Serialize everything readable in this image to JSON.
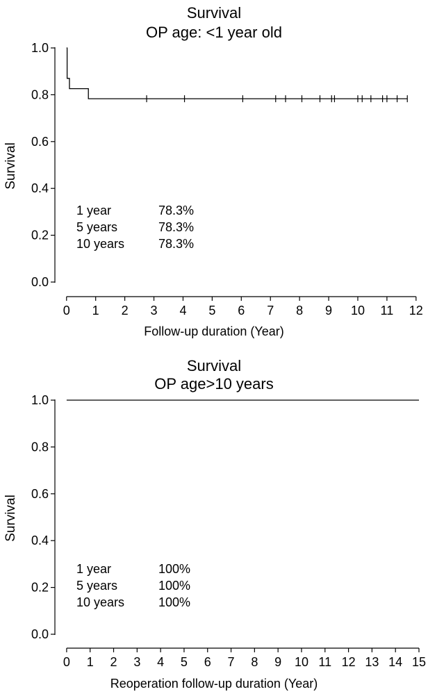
{
  "chart_data": [
    {
      "type": "line",
      "subtype": "kaplan-meier",
      "title": "Survival",
      "subtitle": "OP age: <1 year old",
      "xlabel": "Follow-up duration (Year)",
      "ylabel": "Survival",
      "xlim": [
        -0.4,
        12.1
      ],
      "ylim": [
        0,
        1
      ],
      "xticks": [
        "0",
        "1",
        "2",
        "3",
        "4",
        "5",
        "6",
        "7",
        "8",
        "9",
        "10",
        "11",
        "12"
      ],
      "yticks": [
        "0.0",
        "0.2",
        "0.4",
        "0.6",
        "0.8",
        "1.0"
      ],
      "grid": false,
      "steps": [
        [
          0,
          1.0
        ],
        [
          0.02,
          0.87
        ],
        [
          0.1,
          0.826
        ],
        [
          0.75,
          0.783
        ],
        [
          11.7,
          0.783
        ]
      ],
      "censored_x": [
        2.75,
        4.05,
        6.05,
        7.18,
        7.52,
        8.08,
        8.7,
        9.1,
        9.2,
        10.0,
        10.15,
        10.45,
        10.85,
        11.0,
        11.35,
        11.7
      ],
      "censored_y": 0.783,
      "table": [
        {
          "label": "1 year",
          "value": "78.3%"
        },
        {
          "label": "5 years",
          "value": "78.3%"
        },
        {
          "label": "10 years",
          "value": "78.3%"
        }
      ]
    },
    {
      "type": "line",
      "subtype": "kaplan-meier",
      "title": "Survival",
      "subtitle": "OP age>10 years",
      "xlabel": "Reoperation follow-up duration (Year)",
      "ylabel": "Survival",
      "xlim": [
        -0.5,
        15
      ],
      "ylim": [
        0,
        1
      ],
      "xticks": [
        "0",
        "1",
        "2",
        "3",
        "4",
        "5",
        "6",
        "7",
        "8",
        "9",
        "10",
        "11",
        "12",
        "13",
        "14",
        "15"
      ],
      "yticks": [
        "0.0",
        "0.2",
        "0.4",
        "0.6",
        "0.8",
        "1.0"
      ],
      "grid": false,
      "steps": [
        [
          0,
          1.0
        ],
        [
          15,
          1.0
        ]
      ],
      "censored_x": [],
      "censored_y": 1.0,
      "table": [
        {
          "label": "1 year",
          "value": "100%"
        },
        {
          "label": "5 years",
          "value": "100%"
        },
        {
          "label": "10 years",
          "value": "100%"
        }
      ]
    }
  ]
}
